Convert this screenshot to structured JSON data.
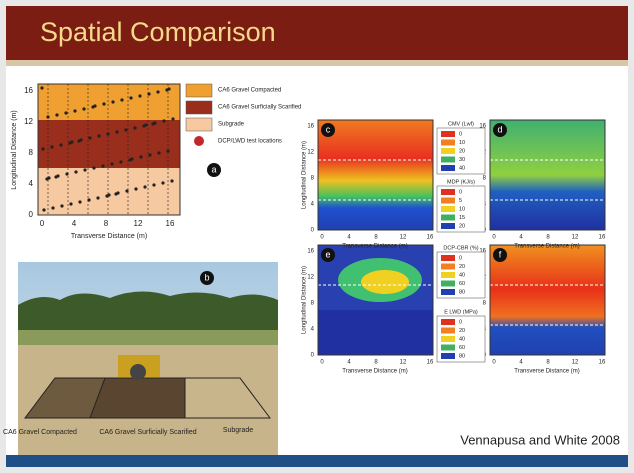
{
  "header": {
    "title": "Spatial Comparison"
  },
  "figure_a": {
    "panel_label": "a",
    "y_axis_label": "Longitudinal Distance (m)",
    "x_axis_label": "Transverse Distance (m)",
    "yticks": [
      "0",
      "4",
      "8",
      "12",
      "16"
    ],
    "xticks": [
      "0",
      "4",
      "8",
      "12",
      "16"
    ],
    "legend": [
      {
        "name": "CA6 Gravel Compacted",
        "color": "#f0a030"
      },
      {
        "name": "CA6 Gravel Surficially Scarified",
        "color": "#9a2e1c"
      },
      {
        "name": "Subgrade",
        "color": "#f6c9a0"
      },
      {
        "name": "DCP/LWD test locations",
        "color": "#c0282a"
      }
    ]
  },
  "photo": {
    "panel_label": "b",
    "labels": [
      "CA6 Gravel Compacted",
      "CA6 Gravel Surficially Scarified",
      "Subgrade"
    ]
  },
  "maps": {
    "panels": [
      "c",
      "d",
      "e",
      "f"
    ],
    "y_axis_label": "Longitudinal Distance (m)",
    "x_axis_label": "Transverse Distance (m)",
    "yticks": [
      "0",
      "4",
      "8",
      "12",
      "16"
    ],
    "xticks": [
      "0",
      "4",
      "8",
      "12",
      "16"
    ],
    "legends": [
      {
        "title": "CMV (Lwf)",
        "items": [
          "0",
          "10",
          "20",
          "30",
          "40"
        ]
      },
      {
        "title": "MDP (KJ/s)",
        "items": [
          "0",
          "5",
          "10",
          "15",
          "20"
        ]
      },
      {
        "title": "DCP-CBR (%)",
        "items": [
          "0",
          "20",
          "40",
          "60",
          "80"
        ]
      },
      {
        "title": "E LWD (MPa)",
        "items": [
          "0",
          "20",
          "40",
          "60",
          "80"
        ]
      }
    ]
  },
  "citation": "Vennapusa and White 2008"
}
